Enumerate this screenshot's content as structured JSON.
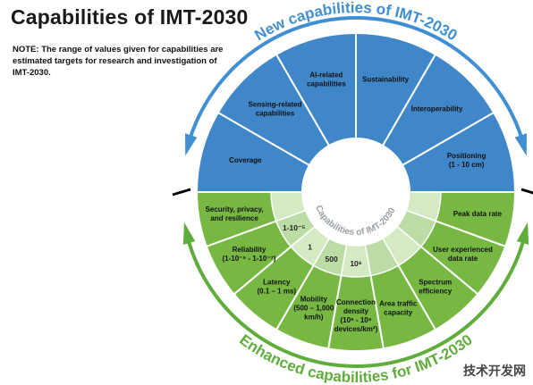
{
  "title": "Capabilities of IMT-2030",
  "note": "NOTE: The range of values given for capabilities are estimated targets for research and investigation of IMT-2030.",
  "new_arc_title": "New capabilities of IMT-2030",
  "enhanced_arc_title": "Enhanced capabilities for IMT-2030",
  "center_label": "Capabilities of IMT-2030",
  "new_capabilities": [
    {
      "lines": [
        "Coverage"
      ]
    },
    {
      "lines": [
        "Sensing-related",
        "capabilities"
      ]
    },
    {
      "lines": [
        "AI-related",
        "capabilities"
      ]
    },
    {
      "lines": [
        "Sustainability"
      ]
    },
    {
      "lines": [
        "Interoperability"
      ]
    },
    {
      "lines": [
        "Positioning",
        "(1 - 10 cm)"
      ]
    }
  ],
  "enhanced_capabilities": [
    {
      "lines": [
        "Peak data rate"
      ],
      "value": ""
    },
    {
      "lines": [
        "User experienced",
        "data rate"
      ],
      "value": ""
    },
    {
      "lines": [
        "Spectrum",
        "efficiency"
      ],
      "value": ""
    },
    {
      "lines": [
        "Area traffic",
        "capacity"
      ],
      "value": ""
    },
    {
      "lines": [
        "Connection",
        "density",
        "(10⁶ - 10⁸",
        "devices/km²)"
      ],
      "value": "10⁶"
    },
    {
      "lines": [
        "Mobility",
        "(500 – 1,000",
        "km/h)"
      ],
      "value": "500"
    },
    {
      "lines": [
        "Latency",
        "(0.1 – 1 ms)"
      ],
      "value": "1"
    },
    {
      "lines": [
        "Reliability",
        "(1-10⁻⁵ - 1-10⁻⁷)"
      ],
      "value": "1-10⁻⁵"
    },
    {
      "lines": [
        "Security, privacy,",
        "and resilience"
      ],
      "value": ""
    }
  ],
  "colors": {
    "blue": "#3f87c9",
    "blue_arc": "#3f8fd2",
    "green": "#77b843",
    "green_arc": "#5fad3a",
    "inner_ring": "#d4e9c4",
    "inner_ring_dark": "#bcdca6",
    "white": "#ffffff"
  },
  "watermark": "技术开发网"
}
